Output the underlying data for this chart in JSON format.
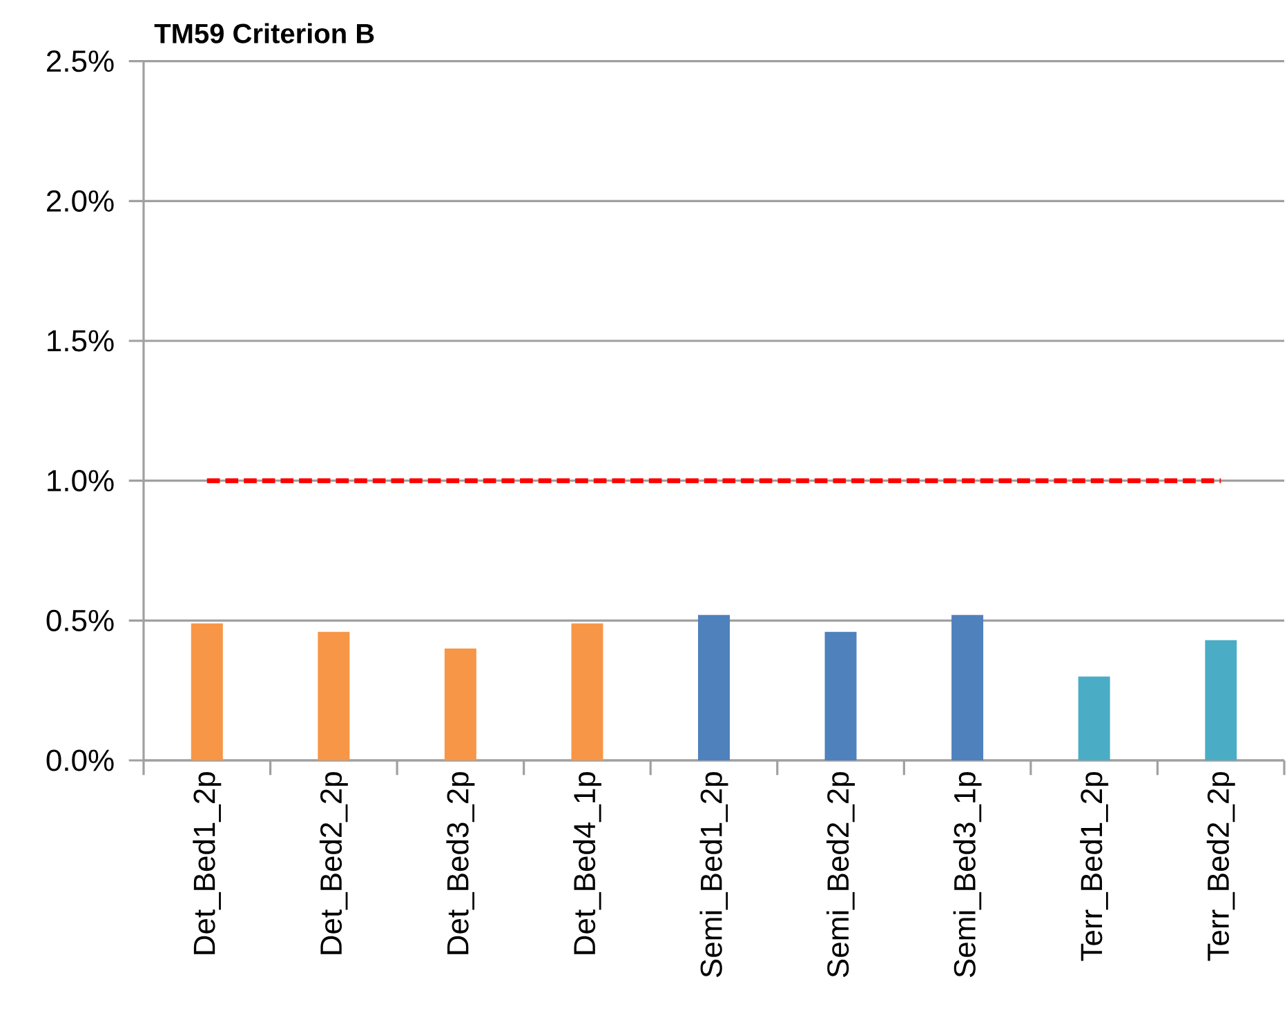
{
  "chart_data": {
    "type": "bar",
    "title": "TM59 Criterion B",
    "categories": [
      "Det_Bed1_2p",
      "Det_Bed2_2p",
      "Det_Bed3_2p",
      "Det_Bed4_1p",
      "Semi_Bed1_2p",
      "Semi_Bed2_2p",
      "Semi_Bed3_1p",
      "Terr_Bed1_2p",
      "Terr_Bed2_2p"
    ],
    "values": [
      0.49,
      0.46,
      0.4,
      0.49,
      0.52,
      0.46,
      0.52,
      0.3,
      0.43
    ],
    "colors": [
      "#f79646",
      "#f79646",
      "#f79646",
      "#f79646",
      "#4f81bd",
      "#4f81bd",
      "#4f81bd",
      "#4bacc6",
      "#4bacc6"
    ],
    "ylim": [
      0,
      2.5
    ],
    "yticks": [
      {
        "value": 0,
        "label": "0.0%"
      },
      {
        "value": 0.5,
        "label": "0.5%"
      },
      {
        "value": 1.0,
        "label": "1.0%"
      },
      {
        "value": 1.5,
        "label": "1.5%"
      },
      {
        "value": 2.0,
        "label": "2.0%"
      },
      {
        "value": 2.5,
        "label": "2.5%"
      }
    ],
    "ref_lines": [
      {
        "axis": "y",
        "value": 1.0,
        "color": "#ff0000",
        "line_style": "dashed"
      }
    ],
    "grid": "y"
  }
}
